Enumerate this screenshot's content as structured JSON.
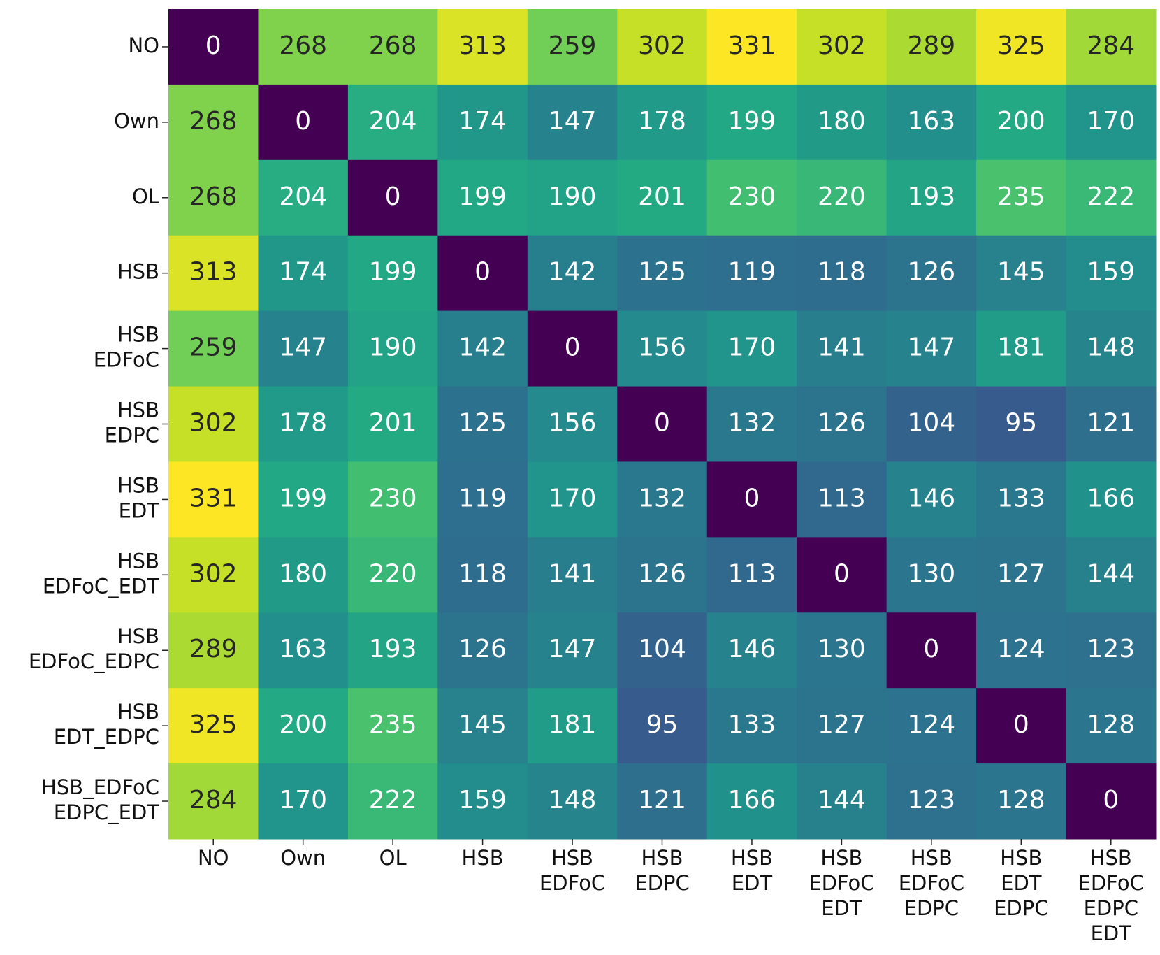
{
  "chart_data": {
    "type": "heatmap",
    "colormap": "viridis",
    "y_labels": [
      [
        "NO"
      ],
      [
        "Own"
      ],
      [
        "OL"
      ],
      [
        "HSB"
      ],
      [
        "HSB",
        "EDFoC"
      ],
      [
        "HSB",
        "EDPC"
      ],
      [
        "HSB",
        "EDT"
      ],
      [
        "HSB",
        "EDFoC_EDT"
      ],
      [
        "HSB",
        "EDFoC_EDPC"
      ],
      [
        "HSB",
        "EDT_EDPC"
      ],
      [
        "HSB_EDFoC",
        "EDPC_EDT"
      ]
    ],
    "x_labels": [
      [
        "NO"
      ],
      [
        "Own"
      ],
      [
        "OL"
      ],
      [
        "HSB"
      ],
      [
        "HSB",
        "EDFoC"
      ],
      [
        "HSB",
        "EDPC"
      ],
      [
        "HSB",
        "EDT"
      ],
      [
        "HSB",
        "EDFoC",
        "EDT"
      ],
      [
        "HSB",
        "EDFoC",
        "EDPC"
      ],
      [
        "HSB",
        "EDT",
        "EDPC"
      ],
      [
        "HSB",
        "EDFoC",
        "EDPC",
        "EDT"
      ]
    ],
    "z": [
      [
        0,
        268,
        268,
        313,
        259,
        302,
        331,
        302,
        289,
        325,
        284
      ],
      [
        268,
        0,
        204,
        174,
        147,
        178,
        199,
        180,
        163,
        200,
        170
      ],
      [
        268,
        204,
        0,
        199,
        190,
        201,
        230,
        220,
        193,
        235,
        222
      ],
      [
        313,
        174,
        199,
        0,
        142,
        125,
        119,
        118,
        126,
        145,
        159
      ],
      [
        259,
        147,
        190,
        142,
        0,
        156,
        170,
        141,
        147,
        181,
        148
      ],
      [
        302,
        178,
        201,
        125,
        156,
        0,
        132,
        126,
        104,
        95,
        121
      ],
      [
        331,
        199,
        230,
        119,
        170,
        132,
        0,
        113,
        146,
        133,
        166
      ],
      [
        302,
        180,
        220,
        118,
        141,
        126,
        113,
        0,
        130,
        127,
        144
      ],
      [
        289,
        163,
        193,
        126,
        147,
        104,
        146,
        130,
        0,
        124,
        123
      ],
      [
        325,
        200,
        235,
        145,
        181,
        95,
        133,
        127,
        124,
        0,
        128
      ],
      [
        284,
        170,
        222,
        159,
        148,
        121,
        166,
        144,
        123,
        128,
        0
      ]
    ]
  }
}
